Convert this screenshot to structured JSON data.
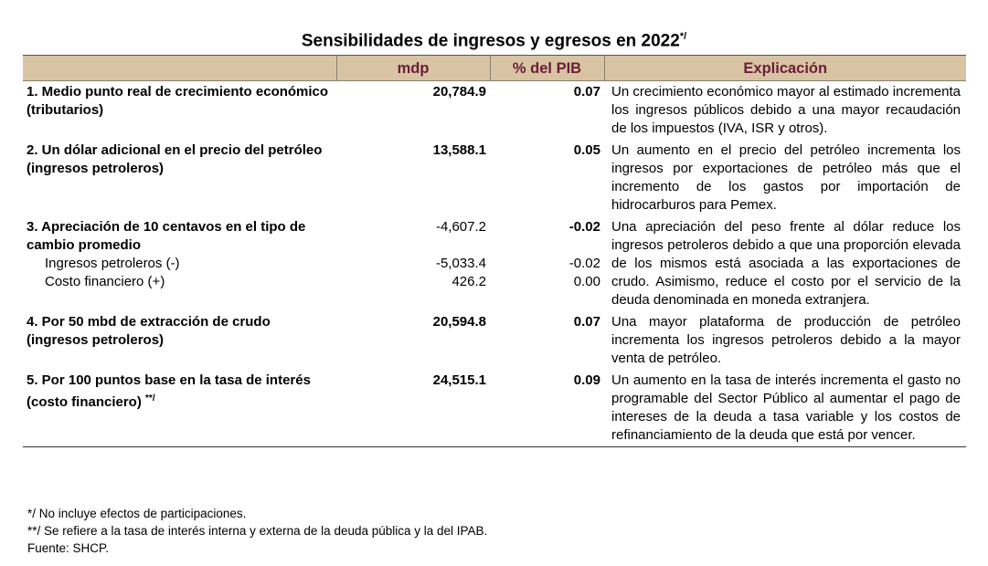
{
  "title": "Sensibilidades de ingresos y egresos en 2022",
  "title_sup": "*/",
  "header": {
    "col1": "",
    "col2": "mdp",
    "col3": "% del PIB",
    "col4": "Explicación"
  },
  "colors": {
    "header_bg": "#d8c4a2",
    "header_text": "#6b1d3a"
  },
  "rows": [
    {
      "label": "1. Medio punto real de crecimiento económico (tributarios)",
      "mdp": "20,784.9",
      "pib": "0.07",
      "explicacion": "Un crecimiento económico mayor al estimado incrementa los ingresos públicos debido a una mayor recaudación de los impuestos (IVA, ISR y otros)."
    },
    {
      "label": "2. Un dólar adicional en el precio del petróleo (ingresos petroleros)",
      "mdp": "13,588.1",
      "pib": "0.05",
      "explicacion": "Un aumento en el precio del petróleo incrementa los ingresos por exportaciones de petróleo más que el incremento de los gastos por importación de hidrocarburos para Pemex."
    },
    {
      "label": "3. Apreciación de 10 centavos en el tipo de cambio promedio",
      "mdp": "-4,607.2",
      "pib": "-0.02",
      "explicacion": "Una apreciación del peso frente al dólar reduce los ingresos petroleros debido a que una proporción elevada de los mismos está asociada a las exportaciones de crudo. Asimismo, reduce el costo por el servicio de la deuda denominada en moneda extranjera.",
      "subrows": [
        {
          "label": "Ingresos petroleros (-)",
          "mdp": "-5,033.4",
          "pib": "-0.02"
        },
        {
          "label": "Costo financiero (+)",
          "mdp": "426.2",
          "pib": "0.00"
        }
      ]
    },
    {
      "label": "4. Por 50 mbd de extracción de crudo (ingresos petroleros)",
      "mdp": "20,594.8",
      "pib": "0.07",
      "explicacion": "Una mayor plataforma de producción de petróleo incrementa los ingresos petroleros debido a la mayor venta de petróleo."
    },
    {
      "label": "5. Por 100 puntos base en la tasa de interés (costo financiero)",
      "label_sup": "**/",
      "mdp": "24,515.1",
      "pib": "0.09",
      "explicacion": "Un aumento en la tasa de interés incrementa el gasto no programable del Sector Público al aumentar el pago de intereses de la deuda a tasa variable y los costos de refinanciamiento de la deuda que está por vencer."
    }
  ],
  "notes": [
    "*/ No incluye efectos de participaciones.",
    "**/ Se refiere a la tasa de interés interna y externa de la deuda pública y la del IPAB.",
    "Fuente: SHCP."
  ]
}
